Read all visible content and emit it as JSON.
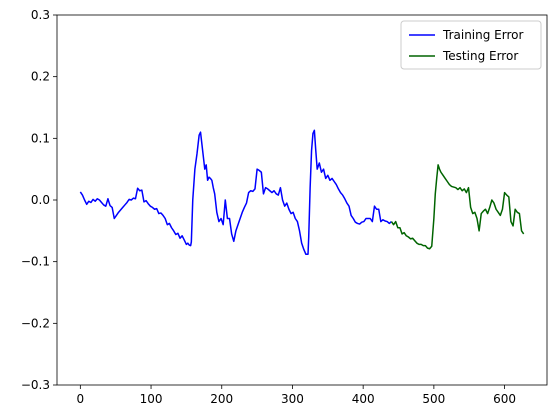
{
  "chart_data": {
    "type": "line",
    "title": "",
    "xlabel": "",
    "ylabel": "",
    "xlim": [
      -33,
      660
    ],
    "ylim": [
      -0.3,
      0.3
    ],
    "xticks": [
      0,
      100,
      200,
      300,
      400,
      500,
      600
    ],
    "yticks": [
      -0.3,
      -0.2,
      -0.1,
      0.0,
      0.1,
      0.2,
      0.3
    ],
    "xtick_labels": [
      "0",
      "100",
      "200",
      "300",
      "400",
      "500",
      "600"
    ],
    "ytick_labels": [
      "−0.3",
      "−0.2",
      "−0.1",
      "0.0",
      "0.1",
      "0.2",
      "0.3"
    ],
    "grid": false,
    "legend_position": "upper-right",
    "series": [
      {
        "name": "Training Error",
        "color": "#0000ff",
        "x": [
          0,
          3,
          6,
          9,
          12,
          15,
          18,
          21,
          24,
          27,
          30,
          33,
          36,
          39,
          42,
          45,
          48,
          51,
          54,
          57,
          60,
          63,
          66,
          69,
          72,
          75,
          78,
          81,
          84,
          87,
          90,
          93,
          96,
          99,
          102,
          105,
          108,
          111,
          114,
          117,
          120,
          123,
          126,
          129,
          132,
          135,
          138,
          141,
          144,
          147,
          150,
          152,
          154,
          156,
          157,
          159,
          162,
          165,
          168,
          170,
          172,
          174,
          176,
          178,
          180,
          182,
          184,
          186,
          188,
          190,
          193,
          196,
          199,
          202,
          205,
          208,
          211,
          214,
          217,
          220,
          223,
          226,
          229,
          232,
          235,
          238,
          241,
          244,
          247,
          250,
          253,
          256,
          259,
          262,
          265,
          268,
          271,
          274,
          277,
          280,
          283,
          286,
          289,
          292,
          295,
          298,
          301,
          304,
          307,
          310,
          313,
          316,
          319,
          322,
          323,
          325,
          327,
          329,
          331,
          333,
          335,
          338,
          341,
          344,
          347,
          350,
          353,
          356,
          359,
          362,
          365,
          368,
          371,
          374,
          377,
          380,
          383,
          386,
          389,
          392,
          395,
          398,
          401,
          404,
          407,
          410,
          413,
          416,
          419,
          422,
          425,
          428,
          431,
          434,
          437,
          440
        ],
        "y": [
          0.013,
          0.008,
          0.0,
          -0.007,
          -0.002,
          -0.004,
          0.001,
          -0.002,
          0.002,
          0.0,
          -0.004,
          -0.008,
          -0.01,
          0.002,
          -0.009,
          -0.012,
          -0.03,
          -0.025,
          -0.02,
          -0.016,
          -0.012,
          -0.008,
          -0.004,
          0.001,
          0.0,
          0.003,
          0.002,
          0.019,
          0.015,
          0.016,
          -0.003,
          -0.001,
          -0.006,
          -0.01,
          -0.012,
          -0.015,
          -0.014,
          -0.022,
          -0.021,
          -0.025,
          -0.03,
          -0.04,
          -0.038,
          -0.045,
          -0.05,
          -0.056,
          -0.054,
          -0.062,
          -0.058,
          -0.065,
          -0.072,
          -0.07,
          -0.073,
          -0.074,
          -0.068,
          0.0,
          0.05,
          0.075,
          0.105,
          0.11,
          0.09,
          0.07,
          0.05,
          0.057,
          0.032,
          0.037,
          0.035,
          0.032,
          0.02,
          0.01,
          -0.02,
          -0.035,
          -0.03,
          -0.04,
          0.0,
          -0.03,
          -0.03,
          -0.055,
          -0.067,
          -0.05,
          -0.04,
          -0.03,
          -0.02,
          -0.012,
          -0.005,
          0.012,
          0.015,
          0.014,
          0.018,
          0.05,
          0.048,
          0.045,
          0.01,
          0.02,
          0.018,
          0.015,
          0.012,
          0.015,
          0.01,
          0.008,
          0.02,
          0.0,
          -0.01,
          -0.005,
          -0.015,
          -0.022,
          -0.02,
          -0.03,
          -0.035,
          -0.05,
          -0.07,
          -0.08,
          -0.088,
          -0.088,
          -0.06,
          0.02,
          0.08,
          0.108,
          0.113,
          0.08,
          0.05,
          0.06,
          0.045,
          0.05,
          0.035,
          0.04,
          0.032,
          0.035,
          0.03,
          0.025,
          0.018,
          0.012,
          0.008,
          0.002,
          -0.005,
          -0.01,
          -0.025,
          -0.03,
          -0.036,
          -0.038,
          -0.039,
          -0.036,
          -0.035,
          -0.03,
          -0.03,
          -0.03,
          -0.035,
          -0.01,
          -0.015,
          -0.015,
          -0.035,
          -0.032,
          -0.034,
          -0.035,
          -0.038,
          -0.035
        ]
      },
      {
        "name": "Testing Error",
        "color": "#006400",
        "x": [
          440,
          443,
          446,
          449,
          452,
          455,
          458,
          461,
          464,
          467,
          470,
          473,
          476,
          479,
          482,
          485,
          488,
          491,
          494,
          497,
          500,
          502,
          504,
          506,
          508,
          510,
          513,
          516,
          519,
          522,
          525,
          528,
          531,
          534,
          537,
          540,
          543,
          546,
          549,
          552,
          555,
          558,
          561,
          564,
          567,
          570,
          573,
          576,
          579,
          582,
          585,
          588,
          591,
          594,
          597,
          600,
          603,
          606,
          609,
          612,
          615,
          618,
          621,
          624,
          627
        ],
        "y": [
          -0.035,
          -0.04,
          -0.035,
          -0.045,
          -0.045,
          -0.055,
          -0.053,
          -0.058,
          -0.06,
          -0.063,
          -0.062,
          -0.066,
          -0.07,
          -0.072,
          -0.072,
          -0.074,
          -0.074,
          -0.078,
          -0.079,
          -0.075,
          -0.03,
          0.01,
          0.035,
          0.057,
          0.05,
          0.045,
          0.04,
          0.035,
          0.03,
          0.025,
          0.022,
          0.021,
          0.02,
          0.017,
          0.02,
          0.015,
          0.018,
          0.012,
          0.02,
          -0.012,
          -0.022,
          -0.02,
          -0.03,
          -0.05,
          -0.022,
          -0.018,
          -0.015,
          -0.022,
          -0.012,
          0.0,
          -0.005,
          -0.015,
          -0.02,
          -0.025,
          -0.015,
          0.012,
          0.008,
          0.005,
          -0.035,
          -0.042,
          -0.015,
          -0.02,
          -0.022,
          -0.05,
          -0.055
        ]
      }
    ]
  }
}
